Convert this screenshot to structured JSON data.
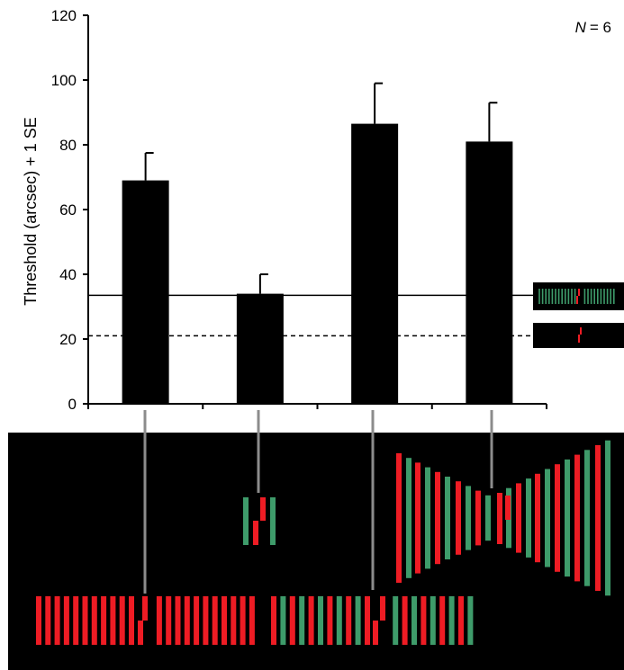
{
  "chart_data": {
    "type": "bar",
    "ylabel": "Threshold (arcsec) + 1 SE",
    "ylim": [
      0,
      120
    ],
    "yticks": [
      0,
      20,
      40,
      60,
      80,
      100,
      120
    ],
    "annotation_label": "N",
    "annotation_value": "= 6",
    "categories": [
      "",
      "",
      "",
      ""
    ],
    "values": [
      69,
      34,
      86.5,
      81
    ],
    "errors": [
      8.5,
      6,
      12.5,
      12
    ],
    "bar_color": "#000000",
    "reference_lines": [
      {
        "style": "solid",
        "value": 33.5
      },
      {
        "style": "dashed",
        "value": 21
      }
    ],
    "legend": "right, two stimulus thumbnails",
    "colors": {
      "red": "#ee1c24",
      "green": "#3e9b6a",
      "stimulus_background": "#000000",
      "connector": "#8c8c8c"
    }
  }
}
